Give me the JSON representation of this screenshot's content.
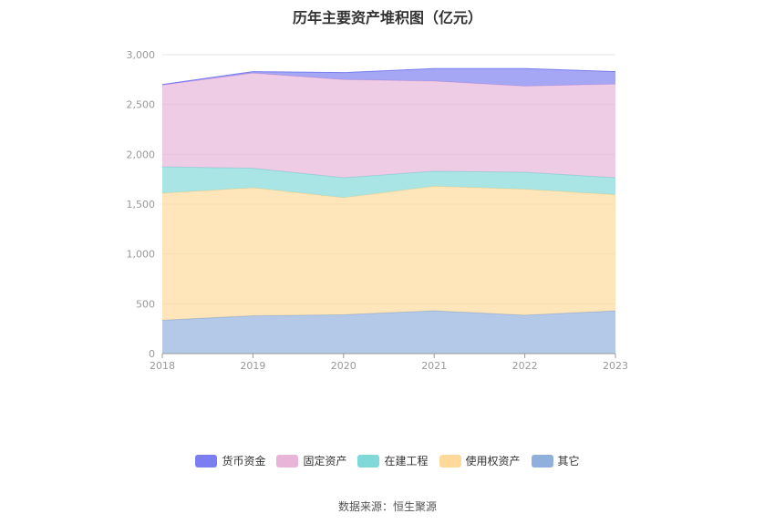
{
  "chart_data": {
    "type": "area",
    "stacked": true,
    "title": "历年主要资产堆积图（亿元）",
    "categories": [
      "2018",
      "2019",
      "2020",
      "2021",
      "2022",
      "2023"
    ],
    "ylim": [
      0,
      3000
    ],
    "yticks": [
      0,
      500,
      1000,
      1500,
      2000,
      2500,
      3000
    ],
    "ytick_labels": [
      "0",
      "500",
      "1,000",
      "1,500",
      "2,000",
      "2,500",
      "3,000"
    ],
    "grid": true,
    "legend_position": "bottom",
    "series": [
      {
        "name": "其它",
        "color": "#8fb0dc",
        "values": [
          335,
          380,
          390,
          430,
          385,
          430
        ]
      },
      {
        "name": "使用权资产",
        "color": "#ffd99a",
        "values": [
          1275,
          1285,
          1175,
          1250,
          1265,
          1165
        ]
      },
      {
        "name": "在建工程",
        "color": "#80d8d8",
        "values": [
          265,
          195,
          200,
          150,
          170,
          170
        ]
      },
      {
        "name": "固定资产",
        "color": "#e8b4d8",
        "values": [
          820,
          955,
          985,
          905,
          865,
          940
        ]
      },
      {
        "name": "货币资金",
        "color": "#7a7ef0",
        "values": [
          5,
          15,
          70,
          125,
          175,
          125
        ]
      }
    ],
    "legend_order": [
      "货币资金",
      "固定资产",
      "在建工程",
      "使用权资产",
      "其它"
    ]
  },
  "source_note": "数据来源：恒生聚源"
}
